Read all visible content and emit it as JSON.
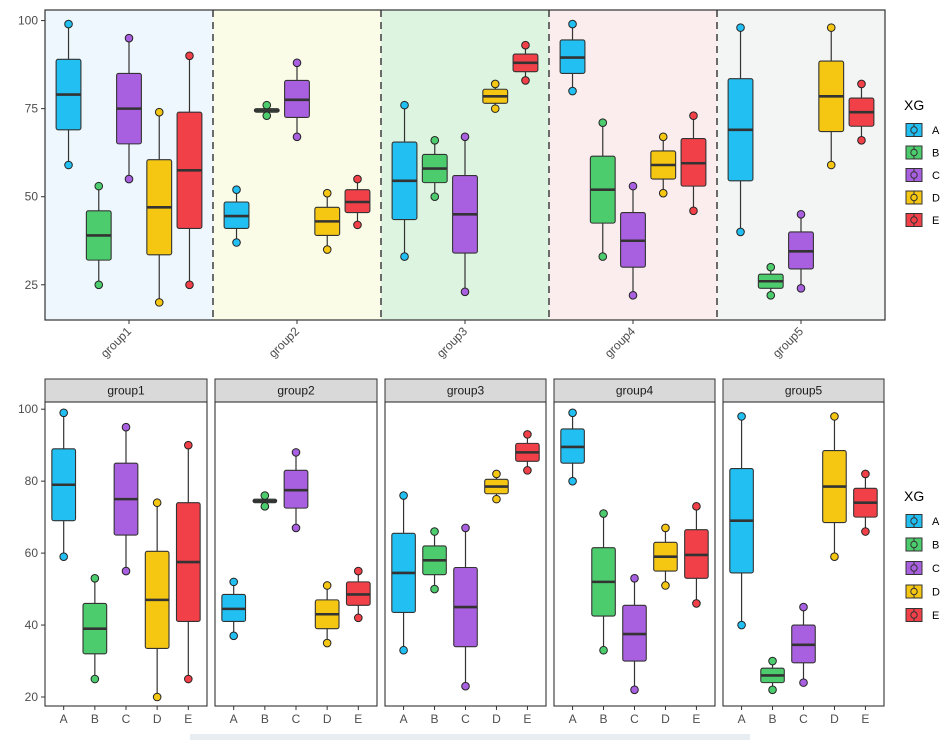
{
  "colors": {
    "A": "#22BFF2",
    "B": "#4DCC6E",
    "C": "#A960E0",
    "D": "#F5C612",
    "E": "#F24049"
  },
  "panel_backgrounds": [
    "#EEF7FD",
    "#FAFCE8",
    "#DDF4E0",
    "#FBEDED",
    "#F3F4F4"
  ],
  "chart_data": [
    {
      "type": "box",
      "name": "top-grouped-boxplot",
      "groups": [
        "group1",
        "group2",
        "group3",
        "group4",
        "group5"
      ],
      "series_names": [
        "A",
        "B",
        "C",
        "D",
        "E"
      ],
      "ylim": [
        15,
        103
      ],
      "yticks": [
        25,
        50,
        75,
        100
      ],
      "legend": {
        "title": "XG",
        "labels": [
          "A",
          "B",
          "C",
          "D",
          "E"
        ],
        "position": "right"
      },
      "boxes": {
        "group1": {
          "A": {
            "min": 59,
            "q1": 69,
            "median": 79,
            "q3": 89,
            "max": 99
          },
          "B": {
            "min": 25,
            "q1": 32,
            "median": 39,
            "q3": 46,
            "max": 53
          },
          "C": {
            "min": 55,
            "q1": 65,
            "median": 75,
            "q3": 85,
            "max": 95
          },
          "D": {
            "min": 20,
            "q1": 33.5,
            "median": 47,
            "q3": 60.5,
            "max": 74
          },
          "E": {
            "min": 25,
            "q1": 41,
            "median": 57.5,
            "q3": 74,
            "max": 90
          }
        },
        "group2": {
          "A": {
            "min": 37,
            "q1": 41,
            "median": 44.5,
            "q3": 48.5,
            "max": 52
          },
          "B": {
            "min": 73,
            "q1": 74,
            "median": 74.5,
            "q3": 75,
            "max": 76
          },
          "C": {
            "min": 67,
            "q1": 72.5,
            "median": 77.5,
            "q3": 83,
            "max": 88
          },
          "D": {
            "min": 35,
            "q1": 39,
            "median": 43,
            "q3": 47,
            "max": 51
          },
          "E": {
            "min": 42,
            "q1": 45.5,
            "median": 48.5,
            "q3": 52,
            "max": 55
          }
        },
        "group3": {
          "A": {
            "min": 33,
            "q1": 43.5,
            "median": 54.5,
            "q3": 65.5,
            "max": 76
          },
          "B": {
            "min": 50,
            "q1": 54,
            "median": 58,
            "q3": 62,
            "max": 66
          },
          "C": {
            "min": 23,
            "q1": 34,
            "median": 45,
            "q3": 56,
            "max": 67
          },
          "D": {
            "min": 75,
            "q1": 76.5,
            "median": 78.5,
            "q3": 80.5,
            "max": 82
          },
          "E": {
            "min": 83,
            "q1": 85.5,
            "median": 88,
            "q3": 90.5,
            "max": 93
          }
        },
        "group4": {
          "A": {
            "min": 80,
            "q1": 85,
            "median": 89.5,
            "q3": 94.5,
            "max": 99
          },
          "B": {
            "min": 33,
            "q1": 42.5,
            "median": 52,
            "q3": 61.5,
            "max": 71
          },
          "C": {
            "min": 22,
            "q1": 30,
            "median": 37.5,
            "q3": 45.5,
            "max": 53
          },
          "D": {
            "min": 51,
            "q1": 55,
            "median": 59,
            "q3": 63,
            "max": 67
          },
          "E": {
            "min": 46,
            "q1": 53,
            "median": 59.5,
            "q3": 66.5,
            "max": 73
          }
        },
        "group5": {
          "A": {
            "min": 40,
            "q1": 54.5,
            "median": 69,
            "q3": 83.5,
            "max": 98
          },
          "B": {
            "min": 22,
            "q1": 24,
            "median": 26,
            "q3": 28,
            "max": 30
          },
          "C": {
            "min": 24,
            "q1": 29.5,
            "median": 34.5,
            "q3": 40,
            "max": 45
          },
          "D": {
            "min": 59,
            "q1": 68.5,
            "median": 78.5,
            "q3": 88.5,
            "max": 98
          },
          "E": {
            "min": 66,
            "q1": 70,
            "median": 74,
            "q3": 78,
            "max": 82
          }
        }
      }
    },
    {
      "type": "box",
      "name": "bottom-faceted-boxplot",
      "facets": [
        "group1",
        "group2",
        "group3",
        "group4",
        "group5"
      ],
      "categories": [
        "A",
        "B",
        "C",
        "D",
        "E"
      ],
      "ylim": [
        17.5,
        102
      ],
      "yticks": [
        20,
        40,
        60,
        80,
        100
      ],
      "legend": {
        "title": "XG",
        "labels": [
          "A",
          "B",
          "C",
          "D",
          "E"
        ],
        "position": "right"
      }
    }
  ]
}
